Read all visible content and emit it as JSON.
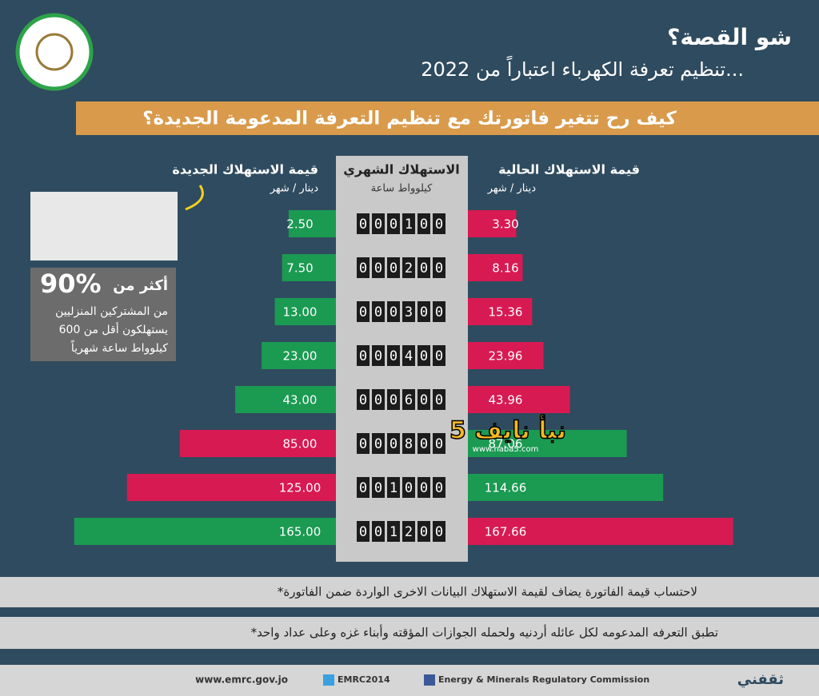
{
  "header": {
    "title": "شو القصة؟",
    "subtitle": "تنظيم تعرفة الكهرباء اعتباراً من 2022..."
  },
  "banner": "كيف رح تتغير فاتورتك مع تنظيم التعرفة المدعومة الجديدة؟",
  "chart_data": {
    "type": "butterfly",
    "center_title": "الاستهلاك الشهري",
    "center_unit": "كيلوواط ساعة",
    "categories": [
      "000100",
      "000200",
      "000300",
      "000400",
      "000600",
      "000800",
      "001000",
      "001200"
    ],
    "series": [
      {
        "name": "قيمة الاستهلاك الجديدة",
        "unit": "دينار / شهر",
        "side": "left",
        "values": [
          2.5,
          7.5,
          13,
          23,
          43,
          85,
          125,
          165
        ],
        "value_labels": [
          "2.50",
          "7.50",
          "13.00",
          "23.00",
          "43.00",
          "85.00",
          "125.00",
          "165.00"
        ],
        "colors": [
          "#1b9a52",
          "#1b9a52",
          "#1b9a52",
          "#1b9a52",
          "#1b9a52",
          "#d81a52",
          "#d81a52",
          "#1b9a52"
        ]
      },
      {
        "name": "قيمة الاستهلاك الحالية",
        "unit": "دينار / شهر",
        "side": "right",
        "values": [
          3.3,
          8.16,
          15.36,
          23.96,
          43.96,
          87.06,
          114.66,
          167.66
        ],
        "value_labels": [
          "3.30",
          "8.16",
          "15.36",
          "23.96",
          "43.96",
          "87.06",
          "114.66",
          "167.66"
        ],
        "colors": [
          "#d81a52",
          "#d81a52",
          "#d81a52",
          "#d81a52",
          "#d81a52",
          "#1b9a52",
          "#1b9a52",
          "#d81a52"
        ]
      }
    ]
  },
  "stat": {
    "line1": "أكثر من",
    "big": "90%",
    "line2": "من المشتركين المنزليين",
    "line3": "يستهلكون أقل من 600",
    "line4": "كيلوواط ساعة شهرياً"
  },
  "watermark": {
    "name": "نبأ نايف 5",
    "url": "www.naba5.com"
  },
  "footnotes": [
    "*لاحتساب قيمة الفاتورة يضاف لقيمة الاستهلاك البيانات الاخرى الواردة ضمن الفاتورة",
    "*تطبق التعرفه المدعومه لكل عائله أردنيه ولحمله الجوازات المؤقته وأبناء غزه وعلى عداد واحد"
  ],
  "footer": {
    "web": "www.emrc.gov.jo",
    "twitter": "EMRC2014",
    "facebook": "Energy & Minerals Regulatory Commission",
    "brand": "ثقفني"
  }
}
